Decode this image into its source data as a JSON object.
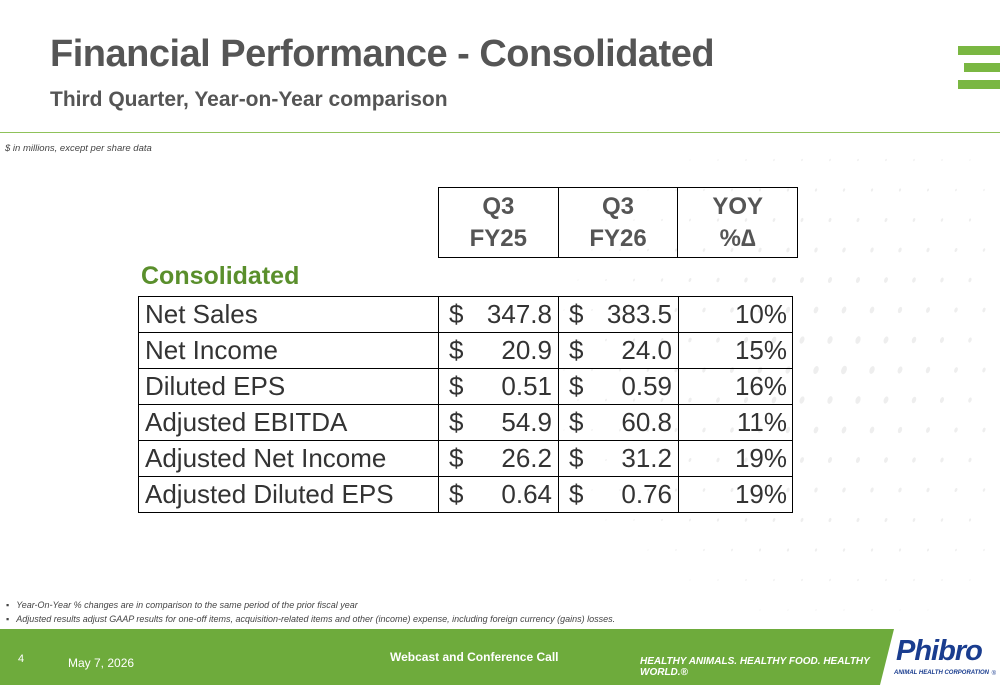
{
  "header": {
    "title": "Financial Performance - Consolidated",
    "subtitle": "Third Quarter, Year-on-Year comparison",
    "note": "$ in millions, except per share data"
  },
  "table": {
    "columns": [
      {
        "line1": "Q3",
        "line2": "FY25"
      },
      {
        "line1": "Q3",
        "line2": "FY26"
      },
      {
        "line1": "YOY",
        "line2": "%∆"
      }
    ],
    "section": "Consolidated",
    "currency": "$",
    "rows": [
      {
        "label": "Net Sales",
        "fy25": "347.8",
        "fy26": "383.5",
        "yoy": "10%"
      },
      {
        "label": "Net Income",
        "fy25": "20.9",
        "fy26": "24.0",
        "yoy": "15%"
      },
      {
        "label": "Diluted EPS",
        "fy25": "0.51",
        "fy26": "0.59",
        "yoy": "16%"
      },
      {
        "label": "Adjusted EBITDA",
        "fy25": "54.9",
        "fy26": "60.8",
        "yoy": "11%"
      },
      {
        "label": "Adjusted Net Income",
        "fy25": "26.2",
        "fy26": "31.2",
        "yoy": "19%"
      },
      {
        "label": "Adjusted Diluted EPS",
        "fy25": "0.64",
        "fy26": "0.76",
        "yoy": "19%"
      }
    ]
  },
  "footnotes": [
    "Year-On-Year % changes are in comparison to the same period of the prior fiscal year",
    "Adjusted results adjust GAAP results for one-off items, acquisition-related items and other (income) expense, including foreign currency (gains)  losses."
  ],
  "footer": {
    "page": "4",
    "date": "May 7, 2026",
    "event": "Webcast and Conference Call",
    "tagline": "HEALTHY ANIMALS. HEALTHY FOOD. HEALTHY WORLD.®"
  },
  "brand": {
    "name": "Phibro",
    "sub": "ANIMAL HEALTH CORPORATION",
    "reg": "®"
  },
  "colors": {
    "accent_green": "#6eab3c",
    "section_green": "#5a8f2c",
    "brand_blue": "#1a3d8f"
  }
}
